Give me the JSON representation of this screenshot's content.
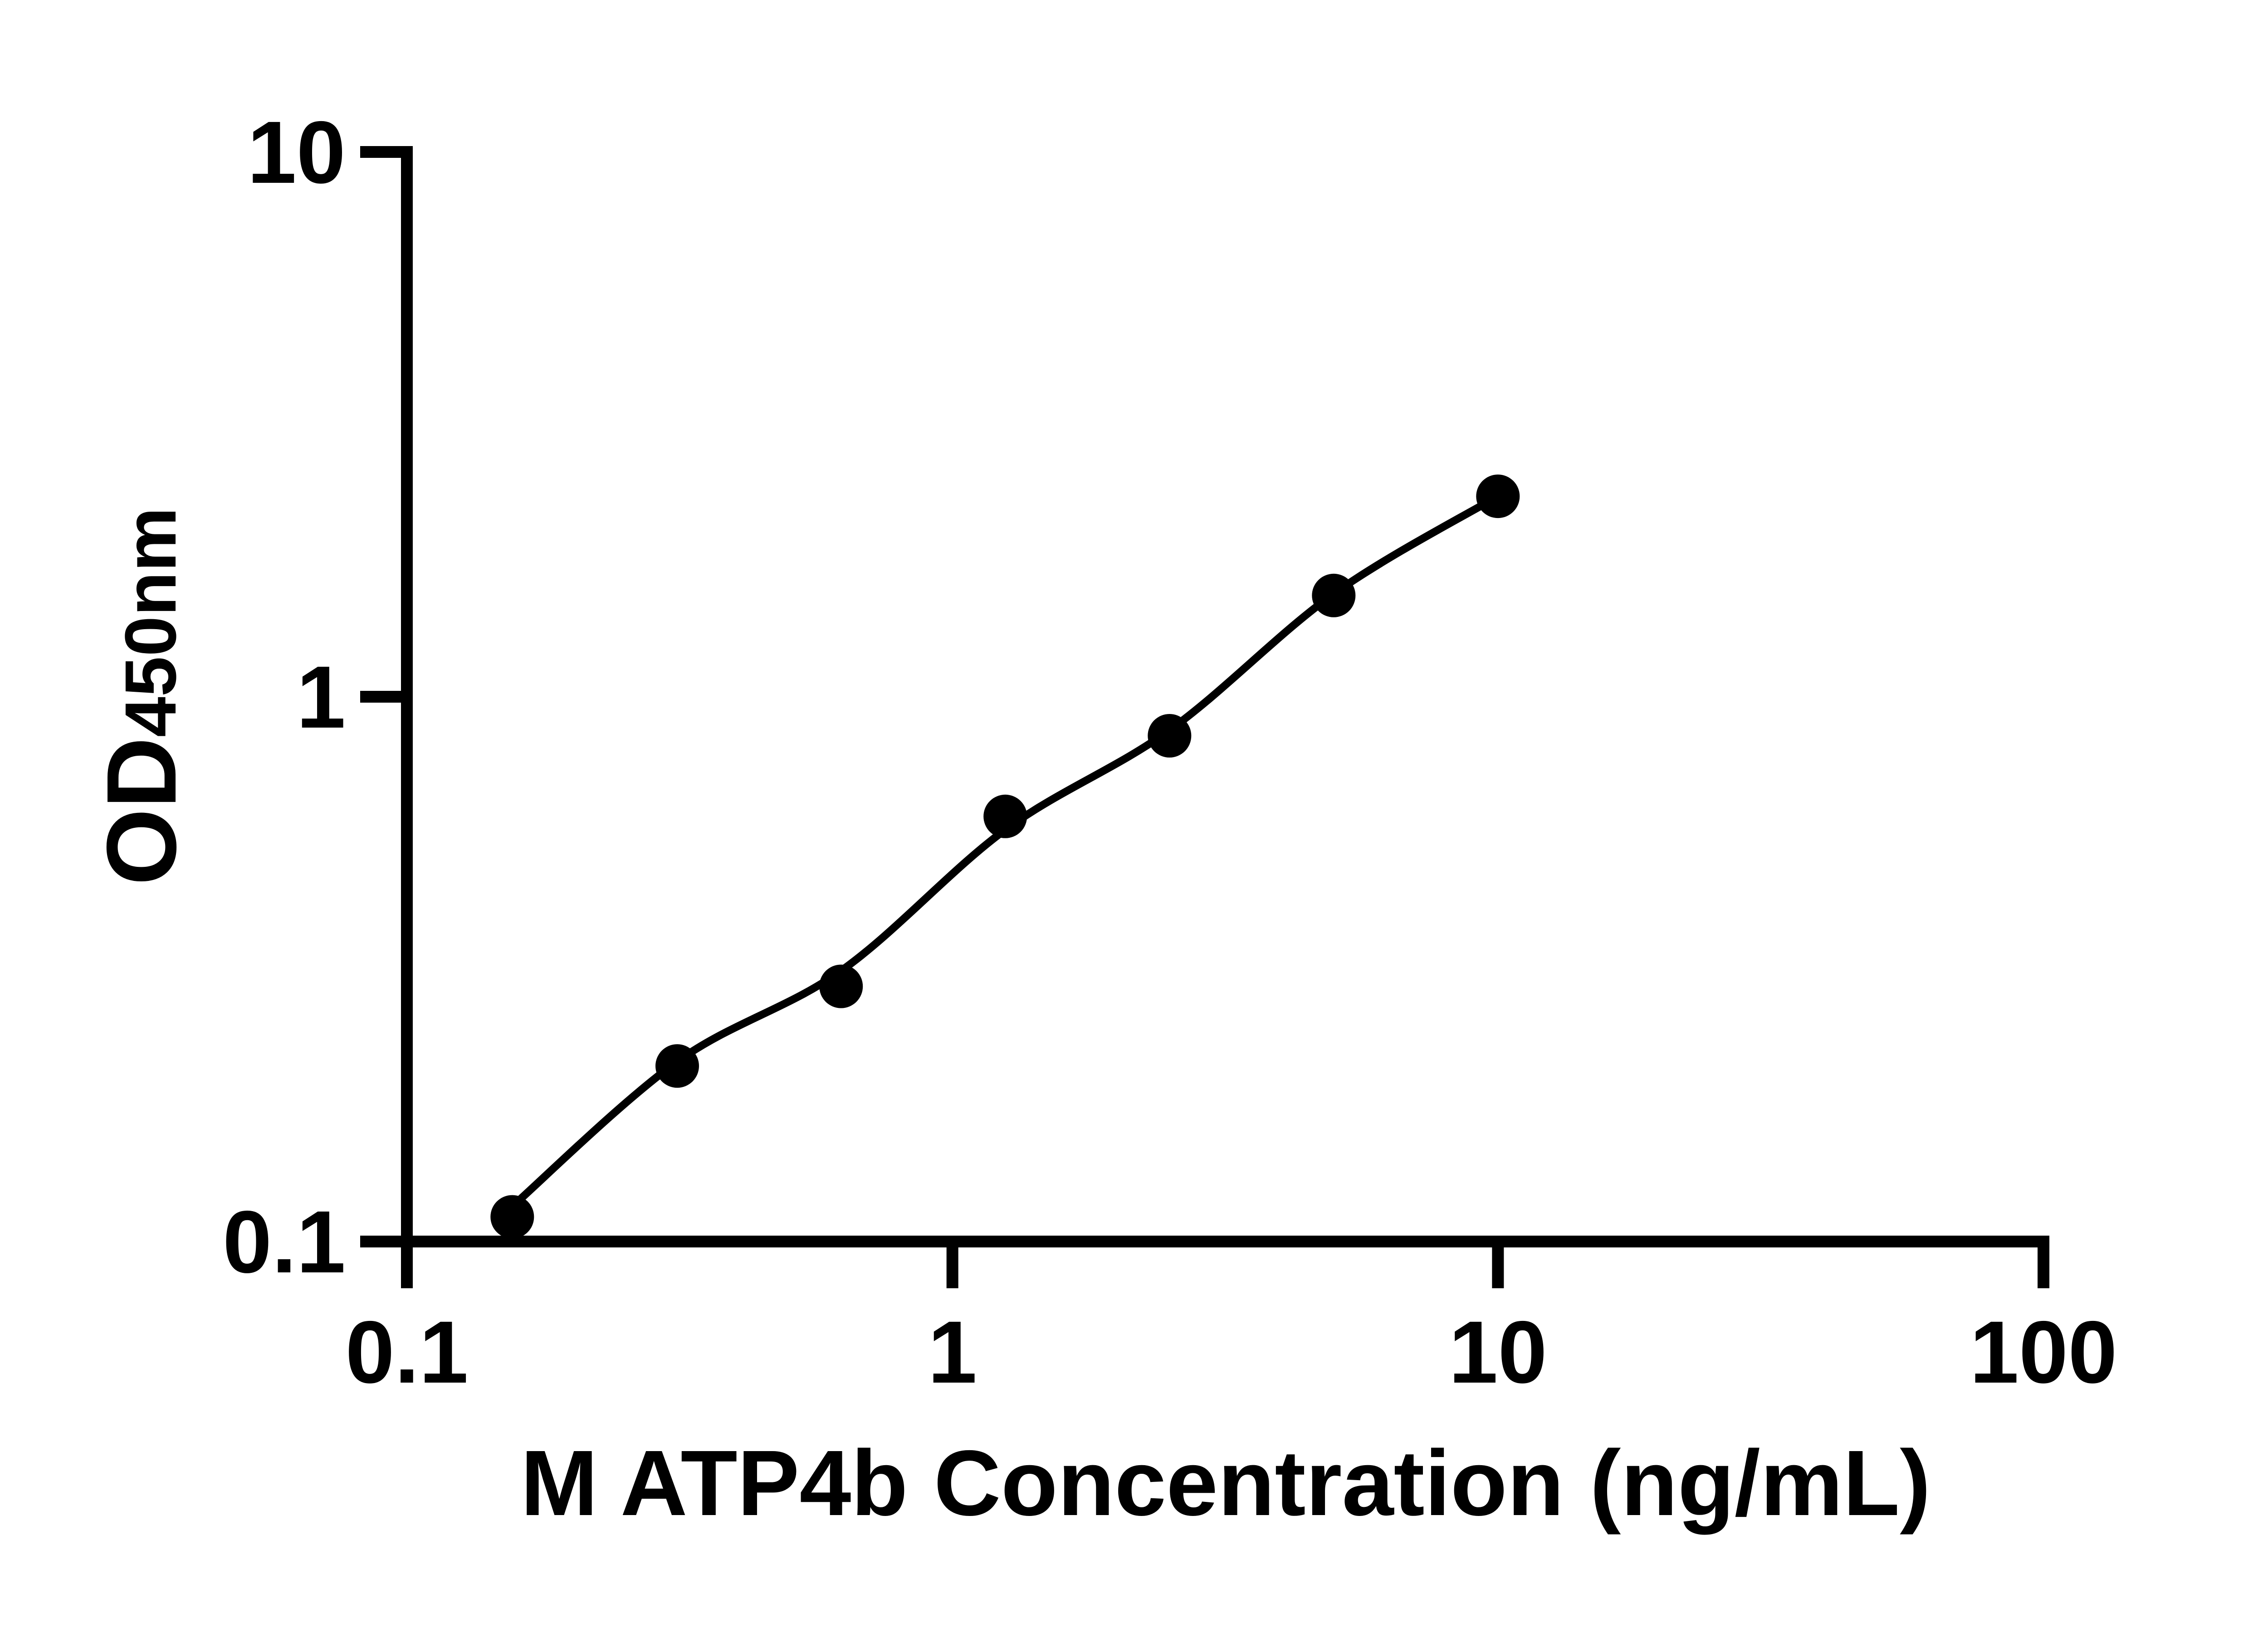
{
  "figure": {
    "background_color": "#ffffff",
    "ink_color": "#000000",
    "title": ""
  },
  "chart_data": {
    "type": "scatter",
    "title": "",
    "xlabel": "M ATP4b Concentration (ng/mL)",
    "ylabel_main": "OD",
    "ylabel_sub": "450nm",
    "x_scale": "log10",
    "y_scale": "log10",
    "xlim": [
      0.1,
      100
    ],
    "ylim": [
      0.1,
      10
    ],
    "grid": false,
    "legend": "none",
    "x_ticks": [
      {
        "value": 0.1,
        "label": "0.1"
      },
      {
        "value": 1,
        "label": "1"
      },
      {
        "value": 10,
        "label": "10"
      },
      {
        "value": 100,
        "label": "100"
      }
    ],
    "y_ticks": [
      {
        "value": 0.1,
        "label": "0.1"
      },
      {
        "value": 1,
        "label": "1"
      },
      {
        "value": 10,
        "label": "10"
      }
    ],
    "series": [
      {
        "name": "M ATP4b standard",
        "marker": "filled-circle",
        "color": "#000000",
        "points": [
          {
            "x": 0.156,
            "y": 0.111
          },
          {
            "x": 0.313,
            "y": 0.21
          },
          {
            "x": 0.625,
            "y": 0.294
          },
          {
            "x": 1.25,
            "y": 0.603
          },
          {
            "x": 2.5,
            "y": 0.848
          },
          {
            "x": 5,
            "y": 1.534
          },
          {
            "x": 10,
            "y": 2.333
          }
        ]
      }
    ],
    "fit_curve": {
      "name": "standard curve fit",
      "color": "#000000",
      "x": [
        0.156,
        0.313,
        0.625,
        1.25,
        2.5,
        5,
        10
      ],
      "y": [
        0.116,
        0.214,
        0.314,
        0.57,
        0.868,
        1.545,
        2.333
      ]
    }
  }
}
